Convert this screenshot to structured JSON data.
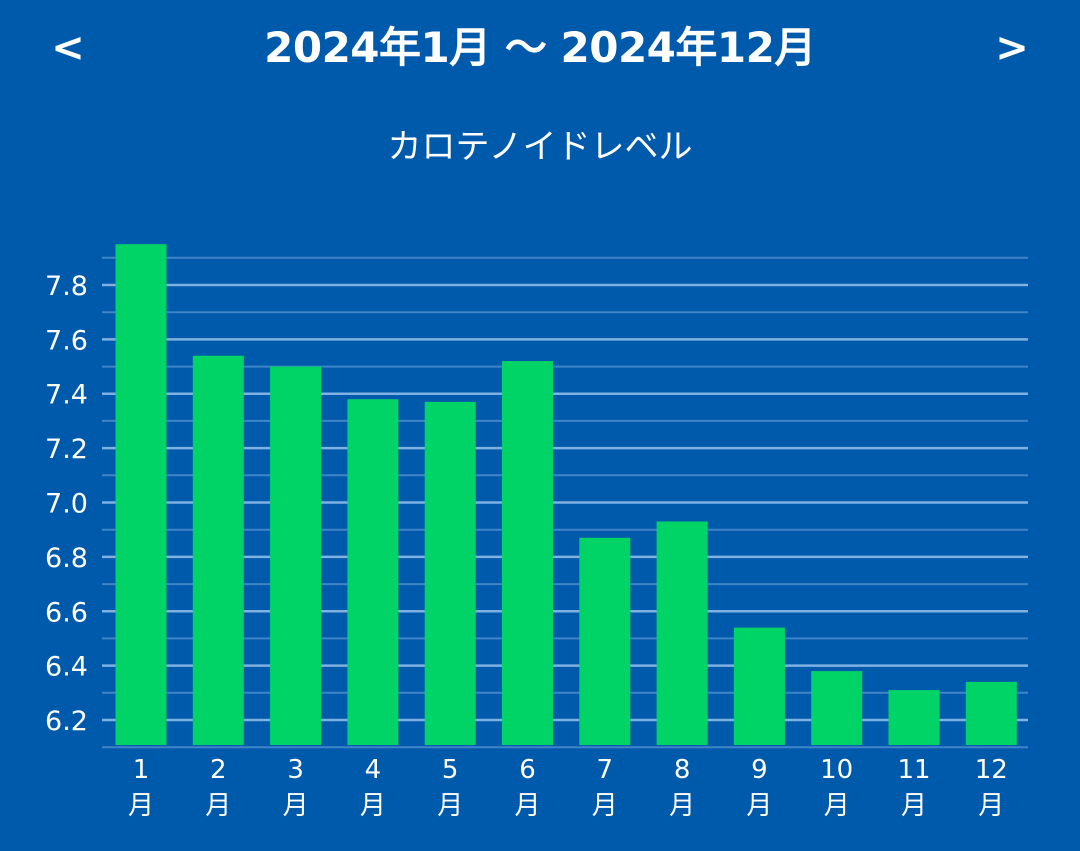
{
  "header": {
    "prev_label": "<",
    "next_label": ">",
    "range_label": "2024年1月 〜 2024年12月"
  },
  "chart_data": {
    "type": "bar",
    "title": "カロテノイドレベル",
    "xlabel": "",
    "ylabel": "",
    "categories": [
      "1\n月",
      "2\n月",
      "3\n月",
      "4\n月",
      "5\n月",
      "6\n月",
      "7\n月",
      "8\n月",
      "9\n月",
      "10\n月",
      "11\n月",
      "12\n月"
    ],
    "values": [
      7.95,
      7.54,
      7.5,
      7.38,
      7.37,
      7.52,
      6.87,
      6.93,
      6.54,
      6.38,
      6.31,
      6.34
    ],
    "ylim": [
      6.1,
      7.9
    ],
    "yticks": [
      "6.2",
      "6.4",
      "6.6",
      "6.8",
      "7.0",
      "7.2",
      "7.4",
      "7.6",
      "7.8"
    ],
    "grid": true,
    "legend": "none",
    "colors": {
      "background": "#005aab",
      "bar": "#00d466",
      "gridline_major": "#7fb2e3",
      "gridline_minor": "#3f85c8",
      "text": "#ffffff"
    }
  }
}
